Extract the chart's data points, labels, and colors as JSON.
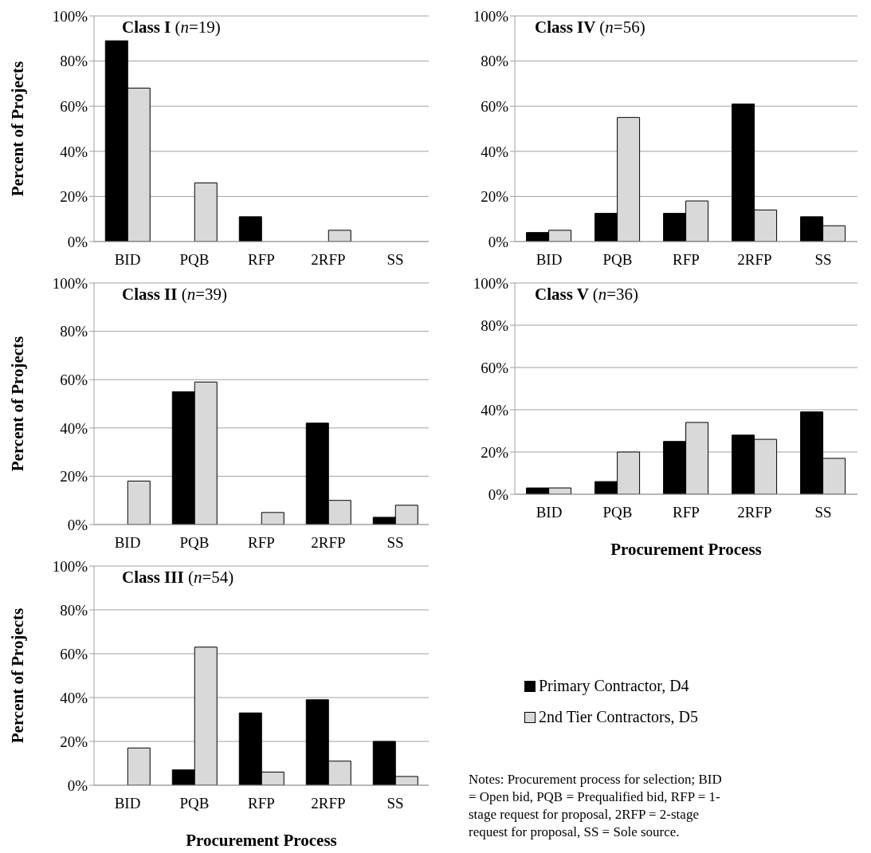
{
  "chart_data": [
    {
      "type": "bar",
      "title": "Class I (n=19)",
      "ylabel": "Percent of Projects",
      "categories": [
        "BID",
        "PQB",
        "RFP",
        "2RFP",
        "SS"
      ],
      "series": [
        {
          "color": "#000000",
          "values": [
            89,
            0,
            11,
            0,
            0
          ]
        },
        {
          "color": "#d9d9d9",
          "values": [
            68,
            26,
            0,
            5,
            0
          ]
        }
      ],
      "ylim": [
        0,
        100
      ],
      "yticks": [
        {
          "value": 0,
          "label": "0%"
        },
        {
          "value": 20,
          "label": "20%"
        },
        {
          "value": 40,
          "label": "40%"
        },
        {
          "value": 60,
          "label": "60%"
        },
        {
          "value": 80,
          "label": "80%"
        },
        {
          "value": 100,
          "label": "100%"
        }
      ],
      "grid": "y"
    },
    {
      "type": "bar",
      "title": "Class IV (n=56)",
      "categories": [
        "BID",
        "PQB",
        "RFP",
        "2RFP",
        "SS"
      ],
      "series": [
        {
          "color": "#000000",
          "values": [
            4,
            12.5,
            12.5,
            61,
            11
          ]
        },
        {
          "color": "#d9d9d9",
          "values": [
            5,
            55,
            18,
            14,
            7
          ]
        }
      ],
      "ylim": [
        0,
        100
      ],
      "yticks": [
        {
          "value": 0,
          "label": "0%"
        },
        {
          "value": 20,
          "label": "20%"
        },
        {
          "value": 40,
          "label": "40%"
        },
        {
          "value": 60,
          "label": "60%"
        },
        {
          "value": 80,
          "label": "80%"
        },
        {
          "value": 100,
          "label": "100%"
        }
      ],
      "grid": "y"
    },
    {
      "type": "bar",
      "title": "Class II (n=39)",
      "ylabel": "Percent of Projects",
      "categories": [
        "BID",
        "PQB",
        "RFP",
        "2RFP",
        "SS"
      ],
      "series": [
        {
          "color": "#000000",
          "values": [
            0,
            55,
            0,
            42,
            3
          ]
        },
        {
          "color": "#d9d9d9",
          "values": [
            18,
            59,
            5,
            10,
            8
          ]
        }
      ],
      "ylim": [
        0,
        100
      ],
      "yticks": [
        {
          "value": 0,
          "label": "0%"
        },
        {
          "value": 20,
          "label": "20%"
        },
        {
          "value": 40,
          "label": "40%"
        },
        {
          "value": 60,
          "label": "60%"
        },
        {
          "value": 80,
          "label": "80%"
        },
        {
          "value": 100,
          "label": "100%"
        }
      ],
      "grid": "y"
    },
    {
      "type": "bar",
      "title": "Class V (n=36)",
      "xlabel": "Procurement Process",
      "categories": [
        "BID",
        "PQB",
        "RFP",
        "2RFP",
        "SS"
      ],
      "series": [
        {
          "color": "#000000",
          "values": [
            3,
            6,
            25,
            28,
            39
          ]
        },
        {
          "color": "#d9d9d9",
          "values": [
            3,
            20,
            34,
            26,
            17
          ]
        }
      ],
      "ylim": [
        0,
        100
      ],
      "yticks": [
        {
          "value": 0,
          "label": "0%"
        },
        {
          "value": 20,
          "label": "20%"
        },
        {
          "value": 40,
          "label": "40%"
        },
        {
          "value": 60,
          "label": "60%"
        },
        {
          "value": 80,
          "label": "80%"
        },
        {
          "value": 100,
          "label": "100%"
        }
      ],
      "grid": "y"
    },
    {
      "type": "bar",
      "title": "Class III (n=54)",
      "xlabel": "Procurement Process",
      "ylabel": "Percent of Projects",
      "categories": [
        "BID",
        "PQB",
        "RFP",
        "2RFP",
        "SS"
      ],
      "series": [
        {
          "name": "Primary Contractor, D4",
          "color": "#000000",
          "values": [
            0,
            7,
            33,
            39,
            20
          ]
        },
        {
          "name": "2nd Tier Contractors, D5",
          "color": "#d9d9d9",
          "values": [
            17,
            63,
            6,
            11,
            4
          ]
        }
      ],
      "ylim": [
        0,
        100
      ],
      "yticks": [
        {
          "value": 0,
          "label": "0%"
        },
        {
          "value": 20,
          "label": "20%"
        },
        {
          "value": 40,
          "label": "40%"
        },
        {
          "value": 60,
          "label": "60%"
        },
        {
          "value": 80,
          "label": "80%"
        },
        {
          "value": 100,
          "label": "100%"
        }
      ],
      "grid": "y",
      "legend": "right",
      "annotations": [
        "Notes: Procurement process for selection; BID = Open bid, PQB = Prequalified bid, RFP = 1-stage request for proposal, 2RFP = 2-stage request for proposal, SS = Sole source."
      ]
    }
  ]
}
